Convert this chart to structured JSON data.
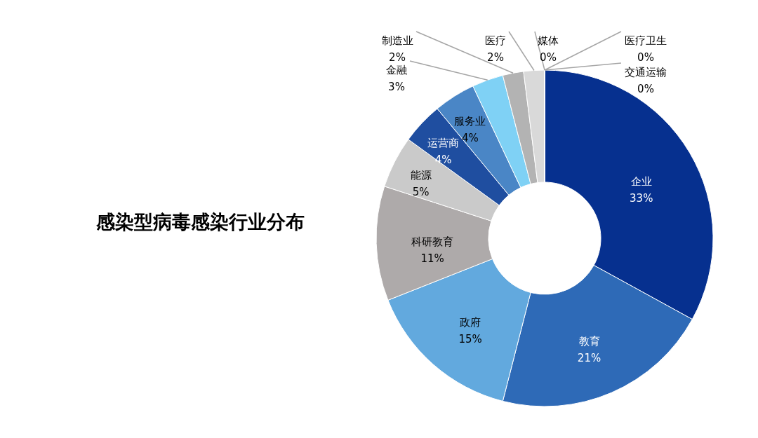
{
  "chart_data": {
    "type": "donut",
    "title": "感染型病毒感染行业分布",
    "categories": [
      "企业",
      "教育",
      "政府",
      "科研教育",
      "能源",
      "运营商",
      "服务业",
      "金融",
      "制造业",
      "医疗",
      "媒体",
      "医疗卫生",
      "交通运输"
    ],
    "values": [
      33,
      21,
      15,
      11,
      5,
      4,
      4,
      3,
      2,
      2,
      0,
      0,
      0
    ],
    "value_labels": [
      "33%",
      "21%",
      "15%",
      "11%",
      "5%",
      "4%",
      "4%",
      "3%",
      "2%",
      "2%",
      "0%",
      "0%",
      "0%"
    ],
    "colors": [
      "#06308f",
      "#2e6ab7",
      "#62a9de",
      "#aeaaaa",
      "#cacaca",
      "#1f4ea0",
      "#4a86c6",
      "#7fd1f5",
      "#b3b3b3",
      "#d9d9d9",
      "#7f7f7f",
      "#2b6c3b",
      "#1a3a6b"
    ]
  }
}
